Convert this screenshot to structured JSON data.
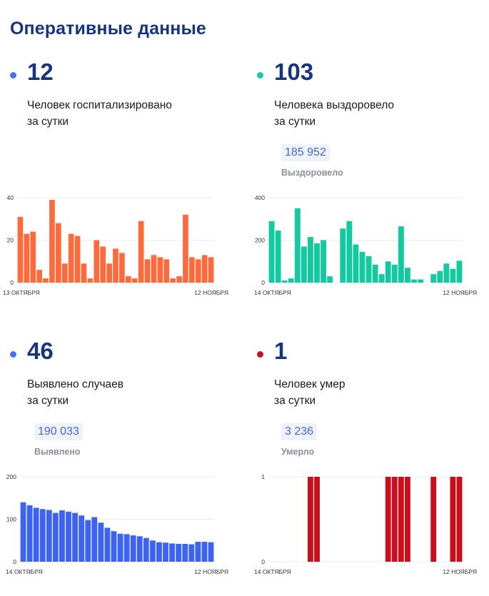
{
  "page_title": "Оперативные данные",
  "panels": [
    {
      "number": "12",
      "line1": "Человек госпитализировано",
      "line2": "за сутки",
      "total": null,
      "total_label": null,
      "dot_color": "#4a6fe6"
    },
    {
      "number": "103",
      "line1": "Человека выздоровело",
      "line2": "за сутки",
      "total": "185 952",
      "total_label": "Выздоровело",
      "dot_color": "#1dc9a4"
    },
    {
      "number": "46",
      "line1": "Выявлено случаев",
      "line2": "за сутки",
      "total": "190 033",
      "total_label": "Выявлено",
      "dot_color": "#4a6fe6"
    },
    {
      "number": "1",
      "line1": "Человек умер",
      "line2": "за сутки",
      "total": "3 236",
      "total_label": "Умерло",
      "dot_color": "#c8101f"
    }
  ],
  "chart_data": [
    {
      "type": "bar",
      "title": "Госпитализировано",
      "color": "#ff6a3d",
      "ylim": [
        0,
        40
      ],
      "yticks": [
        "0",
        "20",
        "40"
      ],
      "x_start_label": "13 ОКТЯБРЯ",
      "x_end_label": "12 НОЯБРЯ",
      "values": [
        31,
        23,
        24,
        6,
        2,
        39,
        28,
        9,
        23,
        22,
        9,
        2,
        20,
        17,
        9,
        16,
        14,
        3,
        2,
        29,
        11,
        13,
        12,
        11,
        2,
        3,
        32,
        12,
        11,
        13,
        12
      ]
    },
    {
      "type": "bar",
      "title": "Выздоровело",
      "color": "#13c9a0",
      "ylim": [
        0,
        400
      ],
      "yticks": [
        "0",
        "200",
        "400"
      ],
      "x_start_label": "14 ОКТЯБРЯ",
      "x_end_label": "12 НОЯБРЯ",
      "values": [
        290,
        245,
        10,
        20,
        350,
        170,
        215,
        185,
        200,
        30,
        0,
        255,
        290,
        180,
        145,
        125,
        85,
        40,
        100,
        85,
        265,
        70,
        15,
        15,
        0,
        40,
        55,
        90,
        65,
        103
      ]
    },
    {
      "type": "bar",
      "title": "Выявлено",
      "color": "#3d64f0",
      "ylim": [
        0,
        200
      ],
      "yticks": [
        "0",
        "100",
        "200"
      ],
      "x_start_label": "14 ОКТЯБРЯ",
      "x_end_label": "12 НОЯБРЯ",
      "values": [
        140,
        133,
        127,
        124,
        122,
        115,
        121,
        118,
        115,
        109,
        98,
        105,
        92,
        80,
        72,
        66,
        65,
        62,
        60,
        56,
        50,
        46,
        45,
        43,
        42,
        42,
        41,
        47,
        47,
        46
      ]
    },
    {
      "type": "bar",
      "title": "Умерло",
      "color": "#cc0e1c",
      "ylim": [
        0,
        1
      ],
      "yticks": [
        "0",
        "1"
      ],
      "x_start_label": "14 ОКТЯБРЯ",
      "x_end_label": "12 НОЯБРЯ",
      "values": [
        0,
        0,
        0,
        0,
        0,
        0,
        1,
        1,
        0,
        0,
        0,
        0,
        0,
        0,
        0,
        0,
        0,
        0,
        1,
        1,
        1,
        1,
        0,
        0,
        0,
        1,
        0,
        0,
        1,
        1
      ]
    }
  ]
}
